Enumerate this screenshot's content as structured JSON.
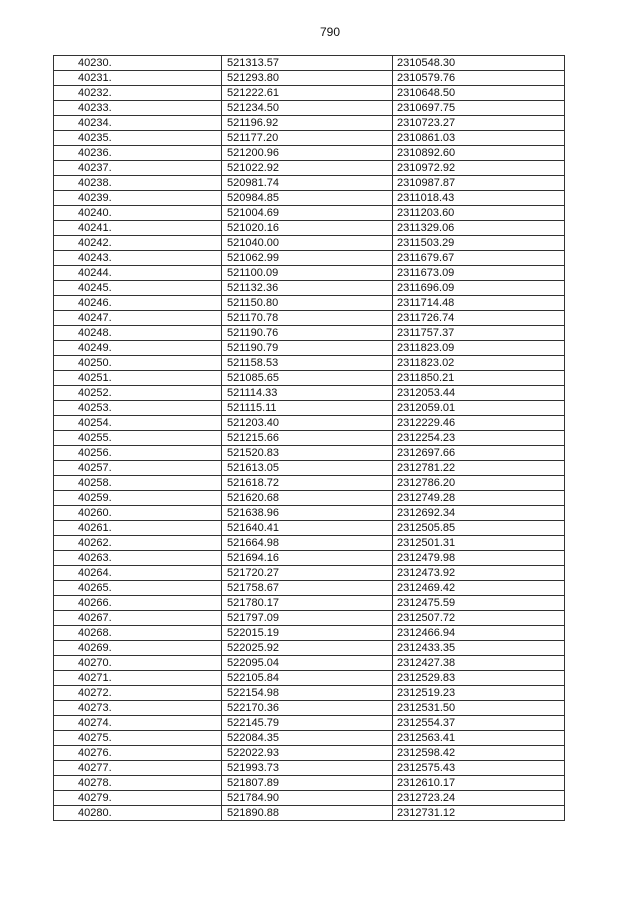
{
  "page_number": "790",
  "table": {
    "rows": [
      [
        "40230.",
        "521313.57",
        "2310548.30"
      ],
      [
        "40231.",
        "521293.80",
        "2310579.76"
      ],
      [
        "40232.",
        "521222.61",
        "2310648.50"
      ],
      [
        "40233.",
        "521234.50",
        "2310697.75"
      ],
      [
        "40234.",
        "521196.92",
        "2310723.27"
      ],
      [
        "40235.",
        "521177.20",
        "2310861.03"
      ],
      [
        "40236.",
        "521200.96",
        "2310892.60"
      ],
      [
        "40237.",
        "521022.92",
        "2310972.92"
      ],
      [
        "40238.",
        "520981.74",
        "2310987.87"
      ],
      [
        "40239.",
        "520984.85",
        "2311018.43"
      ],
      [
        "40240.",
        "521004.69",
        "2311203.60"
      ],
      [
        "40241.",
        "521020.16",
        "2311329.06"
      ],
      [
        "40242.",
        "521040.00",
        "2311503.29"
      ],
      [
        "40243.",
        "521062.99",
        "2311679.67"
      ],
      [
        "40244.",
        "521100.09",
        "2311673.09"
      ],
      [
        "40245.",
        "521132.36",
        "2311696.09"
      ],
      [
        "40246.",
        "521150.80",
        "2311714.48"
      ],
      [
        "40247.",
        "521170.78",
        "2311726.74"
      ],
      [
        "40248.",
        "521190.76",
        "2311757.37"
      ],
      [
        "40249.",
        "521190.79",
        "2311823.09"
      ],
      [
        "40250.",
        "521158.53",
        "2311823.02"
      ],
      [
        "40251.",
        "521085.65",
        "2311850.21"
      ],
      [
        "40252.",
        "521114.33",
        "2312053.44"
      ],
      [
        "40253.",
        "521115.11",
        "2312059.01"
      ],
      [
        "40254.",
        "521203.40",
        "2312229.46"
      ],
      [
        "40255.",
        "521215.66",
        "2312254.23"
      ],
      [
        "40256.",
        "521520.83",
        "2312697.66"
      ],
      [
        "40257.",
        "521613.05",
        "2312781.22"
      ],
      [
        "40258.",
        "521618.72",
        "2312786.20"
      ],
      [
        "40259.",
        "521620.68",
        "2312749.28"
      ],
      [
        "40260.",
        "521638.96",
        "2312692.34"
      ],
      [
        "40261.",
        "521640.41",
        "2312505.85"
      ],
      [
        "40262.",
        "521664.98",
        "2312501.31"
      ],
      [
        "40263.",
        "521694.16",
        "2312479.98"
      ],
      [
        "40264.",
        "521720.27",
        "2312473.92"
      ],
      [
        "40265.",
        "521758.67",
        "2312469.42"
      ],
      [
        "40266.",
        "521780.17",
        "2312475.59"
      ],
      [
        "40267.",
        "521797.09",
        "2312507.72"
      ],
      [
        "40268.",
        "522015.19",
        "2312466.94"
      ],
      [
        "40269.",
        "522025.92",
        "2312433.35"
      ],
      [
        "40270.",
        "522095.04",
        "2312427.38"
      ],
      [
        "40271.",
        "522105.84",
        "2312529.83"
      ],
      [
        "40272.",
        "522154.98",
        "2312519.23"
      ],
      [
        "40273.",
        "522170.36",
        "2312531.50"
      ],
      [
        "40274.",
        "522145.79",
        "2312554.37"
      ],
      [
        "40275.",
        "522084.35",
        "2312563.41"
      ],
      [
        "40276.",
        "522022.93",
        "2312598.42"
      ],
      [
        "40277.",
        "521993.73",
        "2312575.43"
      ],
      [
        "40278.",
        "521807.89",
        "2312610.17"
      ],
      [
        "40279.",
        "521784.90",
        "2312723.24"
      ],
      [
        "40280.",
        "521890.88",
        "2312731.12"
      ]
    ]
  }
}
